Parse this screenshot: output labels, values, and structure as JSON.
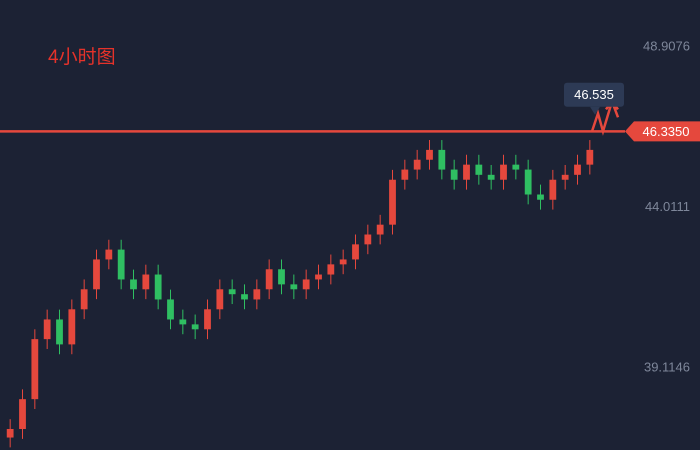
{
  "chart_data": {
    "type": "candlestick",
    "title": "4小时图",
    "ylim": [
      36.62,
      50.34
    ],
    "yticks": [
      39.1146,
      44.0111,
      48.9076
    ],
    "up_color": "#e5483d",
    "down_color": "#2fbf62",
    "open": [
      37.0,
      37.26,
      38.17,
      40.0,
      40.6,
      39.84,
      40.91,
      41.52,
      42.43,
      42.73,
      41.82,
      41.52,
      41.97,
      41.21,
      40.6,
      40.45,
      40.3,
      40.91,
      41.52,
      41.37,
      41.21,
      41.52,
      42.13,
      41.67,
      41.52,
      41.82,
      41.97,
      42.28,
      42.43,
      42.89,
      43.19,
      43.49,
      44.86,
      45.17,
      45.47,
      45.77,
      45.17,
      44.86,
      45.32,
      45.01,
      44.86,
      45.32,
      45.17,
      44.41,
      44.25,
      44.86,
      45.01,
      45.32
    ],
    "high": [
      37.56,
      38.47,
      40.3,
      40.9,
      40.9,
      41.21,
      41.82,
      42.73,
      43.03,
      43.03,
      42.12,
      42.27,
      42.27,
      41.51,
      40.9,
      40.75,
      41.21,
      41.82,
      41.82,
      41.67,
      41.82,
      42.43,
      42.43,
      41.97,
      42.12,
      42.27,
      42.58,
      42.73,
      43.19,
      43.49,
      43.79,
      45.16,
      45.47,
      45.77,
      46.07,
      46.07,
      45.47,
      45.62,
      45.62,
      45.31,
      45.62,
      45.62,
      45.47,
      44.71,
      45.16,
      45.31,
      45.62,
      46.07
    ],
    "low": [
      36.7,
      36.96,
      37.87,
      39.7,
      39.54,
      39.54,
      40.61,
      41.22,
      42.13,
      41.52,
      41.22,
      41.22,
      40.91,
      40.3,
      40.15,
      40.0,
      40.0,
      40.61,
      41.07,
      40.91,
      40.91,
      41.22,
      41.37,
      41.22,
      41.22,
      41.52,
      41.67,
      41.98,
      42.13,
      42.59,
      42.89,
      43.19,
      44.56,
      44.87,
      45.17,
      44.87,
      44.56,
      44.56,
      44.71,
      44.56,
      44.56,
      44.87,
      44.11,
      43.95,
      43.95,
      44.56,
      44.71,
      45.02
    ],
    "close": [
      37.26,
      38.17,
      40.0,
      40.6,
      39.84,
      40.91,
      41.52,
      42.43,
      42.73,
      41.82,
      41.52,
      41.97,
      41.21,
      40.6,
      40.45,
      40.3,
      40.91,
      41.52,
      41.37,
      41.21,
      41.52,
      42.13,
      41.67,
      41.52,
      41.82,
      41.97,
      42.28,
      42.43,
      42.89,
      43.19,
      43.49,
      44.86,
      45.17,
      45.47,
      45.77,
      45.17,
      44.86,
      45.32,
      45.01,
      44.86,
      45.32,
      45.17,
      44.41,
      44.25,
      44.86,
      45.01,
      45.32,
      45.77
    ],
    "last_price": {
      "value": 46.335,
      "label": "46.3350"
    },
    "line_color": "#e5483d",
    "callout": 46.535
  }
}
